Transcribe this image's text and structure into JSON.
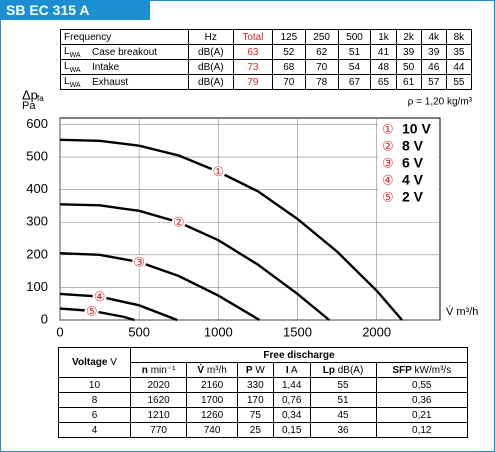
{
  "header": {
    "title": "SB EC 315 A"
  },
  "sound_table": {
    "columns": [
      "Frequency",
      "Hz",
      "Total",
      "125",
      "250",
      "500",
      "1k",
      "2k",
      "4k",
      "8k"
    ],
    "rows": [
      {
        "quantity": "L",
        "sub": "WA",
        "name": "Case breakout",
        "unit": "dB(A)",
        "values": [
          63,
          52,
          62,
          51,
          41,
          39,
          39,
          35
        ]
      },
      {
        "quantity": "L",
        "sub": "WA",
        "name": "Intake",
        "unit": "dB(A)",
        "values": [
          73,
          68,
          70,
          54,
          48,
          50,
          46,
          44
        ]
      },
      {
        "quantity": "L",
        "sub": "WA",
        "name": "Exhaust",
        "unit": "dB(A)",
        "values": [
          79,
          70,
          78,
          67,
          65,
          61,
          57,
          55
        ]
      }
    ]
  },
  "chart_data": {
    "type": "line",
    "y_label": "Δp",
    "y_label_sub": "fa",
    "y_unit": "Pa",
    "x_label": "V̇ m³/h",
    "note": "ρ = 1,20 kg/m³",
    "xlim": [
      0,
      2400
    ],
    "ylim": [
      0,
      620
    ],
    "xticks": [
      0,
      500,
      1000,
      1500,
      2000
    ],
    "yticks": [
      0,
      100,
      200,
      300,
      400,
      500,
      600
    ],
    "grid": true,
    "legend": "top-right",
    "series": [
      {
        "name": "10 V",
        "marker": "①",
        "color": "#000000",
        "marker_color": "#d9262e",
        "x": [
          0,
          250,
          500,
          750,
          1000,
          1250,
          1500,
          1750,
          2000,
          2160
        ],
        "values": [
          553,
          550,
          535,
          505,
          455,
          395,
          310,
          210,
          90,
          0
        ]
      },
      {
        "name": "8 V",
        "marker": "②",
        "color": "#000000",
        "marker_color": "#d9262e",
        "x": [
          0,
          250,
          500,
          750,
          1000,
          1250,
          1500,
          1700
        ],
        "values": [
          355,
          352,
          335,
          300,
          245,
          170,
          80,
          0
        ]
      },
      {
        "name": "6 V",
        "marker": "③",
        "color": "#000000",
        "marker_color": "#d9262e",
        "x": [
          0,
          250,
          500,
          750,
          1000,
          1260
        ],
        "values": [
          205,
          200,
          178,
          135,
          75,
          0
        ]
      },
      {
        "name": "4 V",
        "marker": "④",
        "color": "#000000",
        "marker_color": "#d9262e",
        "x": [
          0,
          250,
          500,
          740
        ],
        "values": [
          80,
          72,
          45,
          0
        ]
      },
      {
        "name": "2 V",
        "marker": "⑤",
        "color": "#000000",
        "marker_color": "#d9262e",
        "x": [
          0,
          200,
          400,
          470
        ],
        "values": [
          35,
          28,
          10,
          0
        ]
      }
    ]
  },
  "discharge_table": {
    "header": {
      "name": "Voltage",
      "unit": "V"
    },
    "group": "Free discharge",
    "columns": [
      {
        "name": "n",
        "unit": "min⁻¹"
      },
      {
        "name": "V̇",
        "unit": "m³/h"
      },
      {
        "name": "P",
        "unit": "W"
      },
      {
        "name": "I",
        "unit": "A"
      },
      {
        "name": "Lp",
        "unit": "dB(A)"
      },
      {
        "name": "SFP",
        "unit": "kW/m³/s"
      }
    ],
    "rows": [
      [
        10,
        2020,
        2160,
        330,
        "1,44",
        55,
        "0,55"
      ],
      [
        8,
        1620,
        1700,
        170,
        "0,76",
        51,
        "0,36"
      ],
      [
        6,
        1210,
        1260,
        75,
        "0,34",
        45,
        "0,21"
      ],
      [
        4,
        770,
        740,
        25,
        "0,15",
        36,
        "0,12"
      ]
    ]
  }
}
